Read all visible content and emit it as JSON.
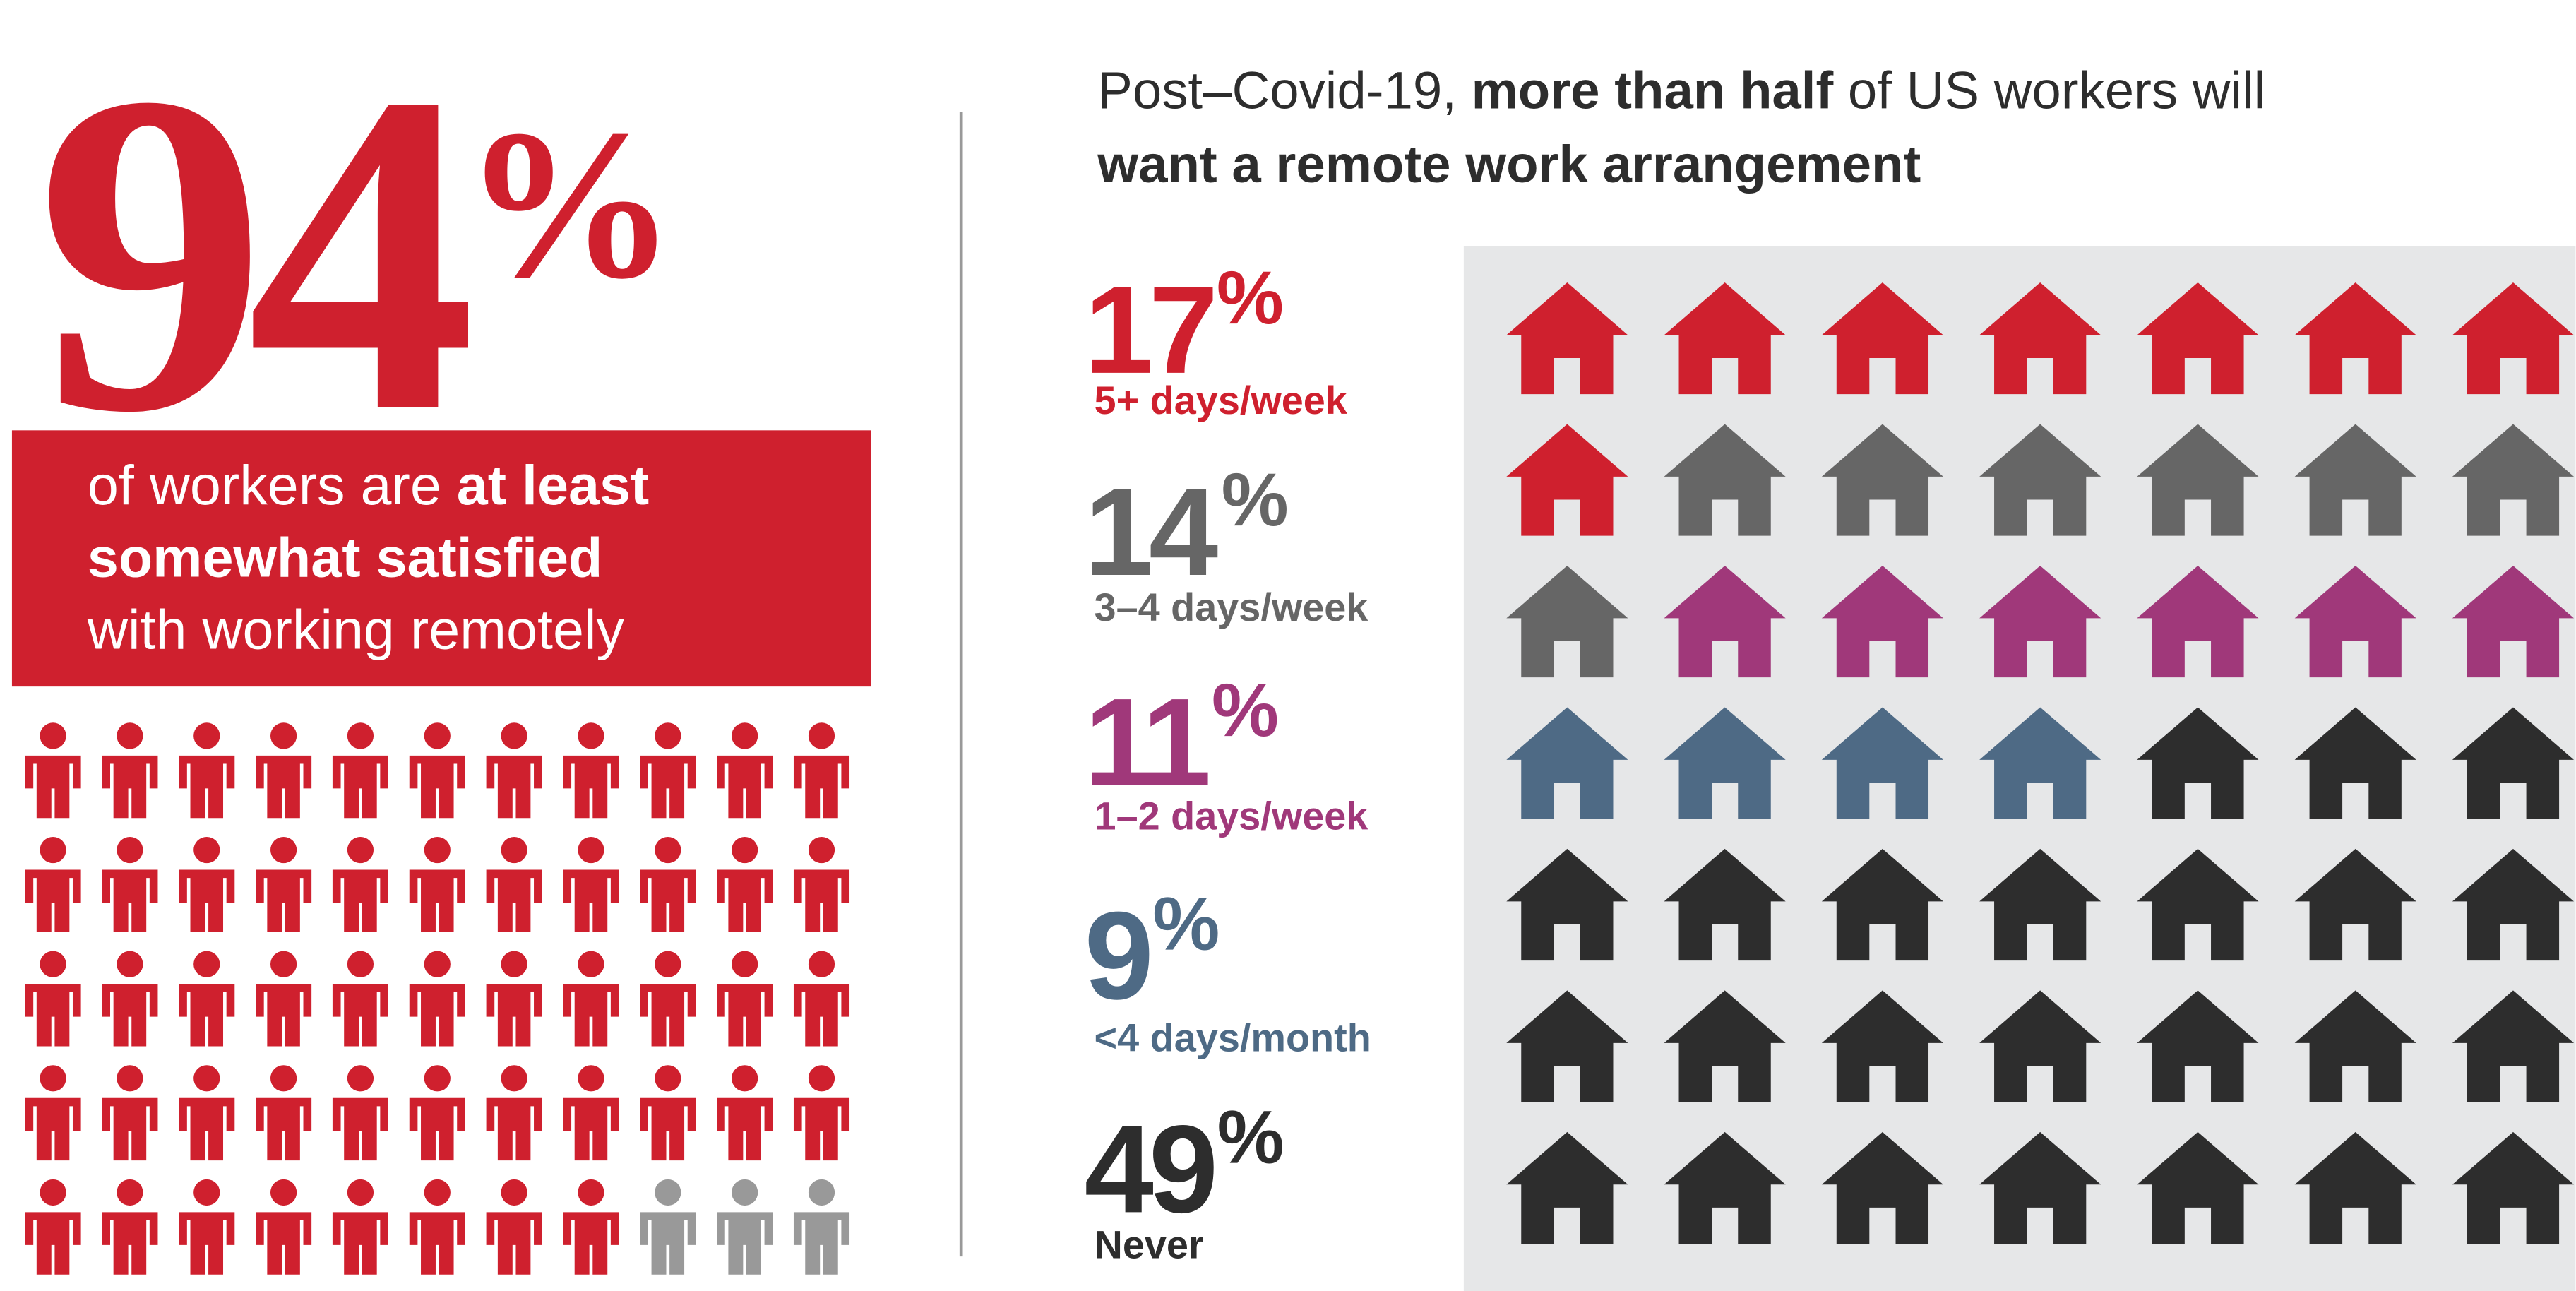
{
  "chart_data": [
    {
      "type": "pictogram",
      "value": 94,
      "unit": "%",
      "caption": [
        [
          {
            "text": "of workers are ",
            "bold": false
          },
          {
            "text": "at least",
            "bold": true
          }
        ],
        [
          {
            "text": "somewhat satisfied",
            "bold": true
          }
        ],
        [
          {
            "text": "with working remotely",
            "bold": false
          }
        ]
      ],
      "color": "#cf202e",
      "rest_color": "#999999"
    },
    {
      "type": "pictogram",
      "title": [
        [
          {
            "text": "Post–Covid-19, ",
            "bold": false
          },
          {
            "text": "more than half",
            "bold": true
          },
          {
            "text": " of US workers will",
            "bold": false
          }
        ],
        [
          {
            "text": "want a remote work arrangement",
            "bold": true
          }
        ]
      ],
      "unit": "%",
      "categories": [
        "5+ days/week",
        "3–4 days/week",
        "1–2 days/week",
        "<4 days/month",
        "Never"
      ],
      "values": [
        17,
        14,
        11,
        9,
        49
      ],
      "colors": [
        "#cf202e",
        "#666666",
        "#a0387a",
        "#4e6a85",
        "#2d2d2d"
      ]
    }
  ]
}
